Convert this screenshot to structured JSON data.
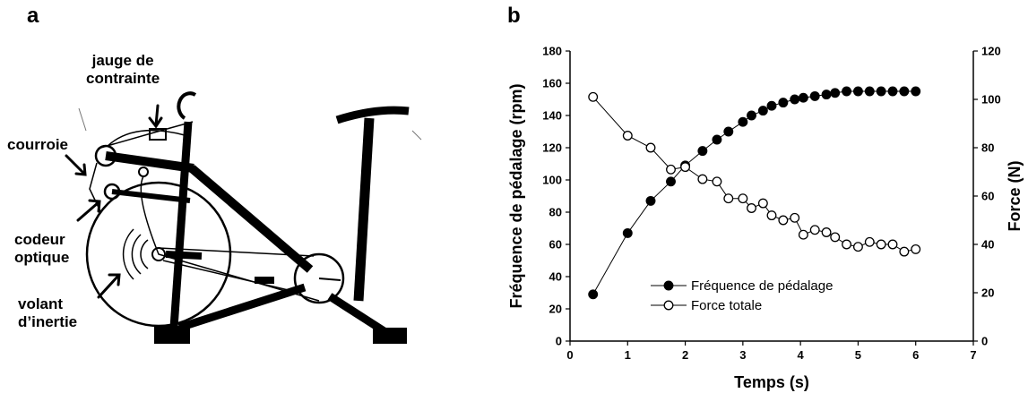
{
  "panels": {
    "a": "a",
    "b": "b"
  },
  "bike_labels": {
    "strain_gauge_line1": "jauge de",
    "strain_gauge_line2": "contrainte",
    "belt": "courroie",
    "encoder_line1": "codeur",
    "encoder_line2": "optique",
    "flywheel_line1": "volant",
    "flywheel_line2": "d’inertie"
  },
  "chart_data": {
    "type": "scatter",
    "xlabel": "Temps (s)",
    "ylabel_left": "Fréquence de pédalage (rpm)",
    "ylabel_right": "Force (N)",
    "xlim": [
      0,
      7
    ],
    "ylim_left": [
      0,
      180
    ],
    "ylim_right": [
      0,
      120
    ],
    "x_ticks": [
      "0",
      "1",
      "2",
      "3",
      "4",
      "5",
      "6",
      "7"
    ],
    "y_left_ticks": [
      "0",
      "20",
      "40",
      "60",
      "80",
      "100",
      "120",
      "140",
      "160",
      "180"
    ],
    "y_right_ticks": [
      "0",
      "20",
      "40",
      "60",
      "80",
      "100",
      "120"
    ],
    "legend_position": "bottom-center",
    "series": [
      {
        "name": "Fréquence de pédalage",
        "axis": "left",
        "marker": "filled-circle",
        "color": "#000000",
        "x": [
          0.4,
          1.0,
          1.4,
          1.75,
          2.0,
          2.3,
          2.55,
          2.75,
          3.0,
          3.15,
          3.35,
          3.5,
          3.7,
          3.9,
          4.05,
          4.25,
          4.45,
          4.6,
          4.8,
          5.0,
          5.2,
          5.4,
          5.6,
          5.8,
          6.0
        ],
        "y": [
          29,
          67,
          87,
          99,
          109,
          118,
          125,
          130,
          136,
          140,
          143,
          146,
          148,
          150,
          151,
          152,
          153,
          154,
          155,
          155,
          155,
          155,
          155,
          155,
          155
        ]
      },
      {
        "name": "Force totale",
        "axis": "right",
        "marker": "open-circle",
        "color": "#000000",
        "x": [
          0.4,
          1.0,
          1.4,
          1.75,
          2.0,
          2.3,
          2.55,
          2.75,
          3.0,
          3.15,
          3.35,
          3.5,
          3.7,
          3.9,
          4.05,
          4.25,
          4.45,
          4.6,
          4.8,
          5.0,
          5.2,
          5.4,
          5.6,
          5.8,
          6.0
        ],
        "y": [
          101,
          85,
          80,
          71,
          72,
          67,
          66,
          59,
          59,
          55,
          57,
          52,
          50,
          51,
          44,
          46,
          45,
          43,
          40,
          39,
          41,
          40,
          40,
          37,
          38
        ]
      }
    ]
  }
}
